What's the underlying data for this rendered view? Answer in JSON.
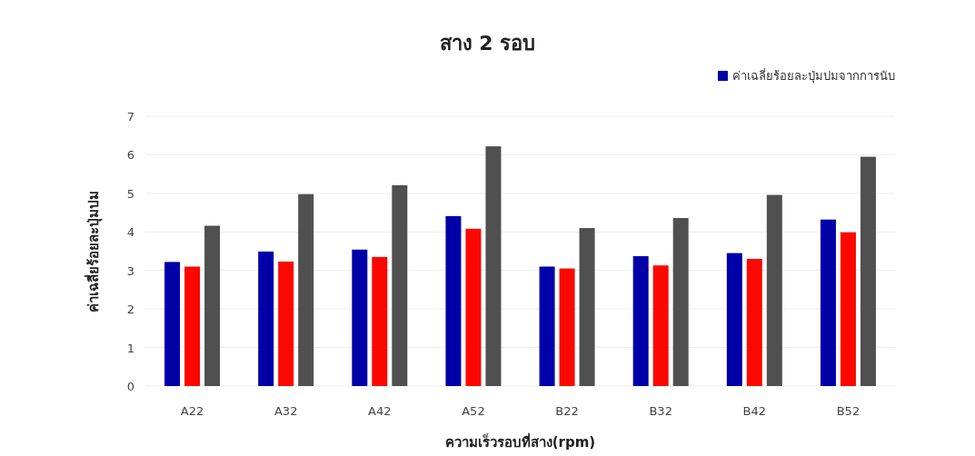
{
  "chart_data": {
    "type": "bar",
    "title": "สาง 2  รอบ",
    "xlabel": "ความเร็วรอบที่สาง(rpm)",
    "ylabel": "ค่าเฉลี่ยร้อยละปุ่มปม",
    "categories": [
      "A22",
      "A32",
      "A42",
      "A52",
      "B22",
      "B32",
      "B42",
      "B52"
    ],
    "series": [
      {
        "name": "ค่าเฉลี่ยร้อยละปุ่มปมจากการนับ",
        "color": "#0000a8",
        "values": [
          3.22,
          3.49,
          3.54,
          4.41,
          3.1,
          3.37,
          3.45,
          4.32
        ]
      },
      {
        "color": "#fa0800",
        "values": [
          3.1,
          3.23,
          3.35,
          4.08,
          3.05,
          3.13,
          3.3,
          3.99
        ]
      },
      {
        "color": "#505050",
        "values": [
          4.16,
          4.98,
          5.21,
          6.22,
          4.1,
          4.36,
          4.96,
          5.95
        ]
      }
    ],
    "ylim": [
      0,
      7
    ],
    "yticks": [
      0,
      1,
      2,
      3,
      4,
      5,
      6,
      7
    ],
    "grid": "y",
    "legend": "top right"
  }
}
